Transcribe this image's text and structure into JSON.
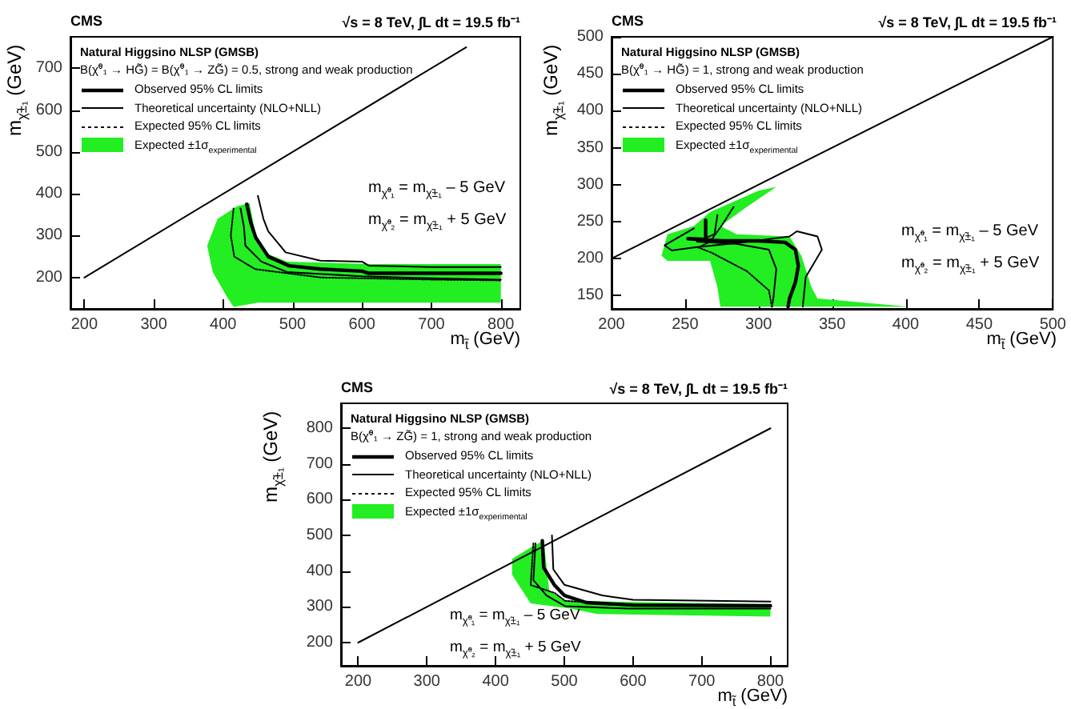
{
  "chart_data": [
    {
      "type": "line",
      "title": "CMS",
      "legend_title": "Natural Higgsino NLSP (GMSB)",
      "xlabel": "m$_{t̃}$ (GeV)",
      "ylabel": "m$_{χ̃±₁}$ (GeV)",
      "annotations": [
        "√s = 8 TeV,  ∫L dt = 19.5 fb⁻¹",
        "B(χ̃⁰₁ → HG̃) = B(χ̃⁰₁ → ZG̃) = 0.5, strong and weak production",
        "m$_{χ̃⁰₁}$ = m$_{χ̃±₁}$ – 5 GeV",
        "m$_{χ̃⁰₂}$ = m$_{χ̃±₁}$ + 5 GeV"
      ],
      "xlim": [
        180,
        828
      ],
      "ylim": [
        125,
        775
      ],
      "xticks": [
        200,
        300,
        400,
        500,
        600,
        700,
        800
      ],
      "yticks": [
        200,
        300,
        400,
        500,
        600,
        700
      ],
      "grid": false,
      "legend": "top left",
      "marker": "none",
      "series": [
        {
          "type": "line",
          "name": "Observed 95% CL limits",
          "color": "#000000",
          "line_style": "solid",
          "x": [
            434,
            440,
            447,
            465,
            495,
            540,
            600,
            610,
            700,
            800
          ],
          "values": [
            375,
            330,
            295,
            250,
            228,
            220,
            215,
            210,
            210,
            210
          ]
        },
        {
          "type": "line",
          "name": "Theoretical uncertainty (NLO+NLL)",
          "color": "#000000",
          "line_style": "solid",
          "x": [
            450,
            458,
            465,
            490,
            540,
            600,
            610,
            700,
            800
          ],
          "values": [
            395,
            340,
            310,
            260,
            240,
            238,
            228,
            225,
            225
          ]
        },
        {
          "type": "line",
          "color": "#000000",
          "line_style": "solid",
          "x": [
            425,
            430,
            432,
            455,
            492,
            600,
            700,
            800
          ],
          "values": [
            365,
            320,
            276,
            238,
            213,
            203,
            198,
            195
          ]
        },
        {
          "type": "line",
          "name": "Expected 95% CL limits",
          "color": "#000000",
          "line_style": "dotted",
          "x": [
            415,
            411,
            416,
            446,
            540,
            700,
            800
          ],
          "values": [
            365,
            300,
            250,
            220,
            200,
            195,
            193
          ]
        },
        {
          "type": "area",
          "name": "Expected ±1σ$_{experimental}$",
          "color": "#22ee22",
          "x": [
            438,
            447,
            462,
            492,
            615,
            800,
            800,
            700,
            540,
            450,
            415,
            405,
            385,
            377,
            392,
            420
          ],
          "values": [
            378,
            300,
            258,
            238,
            232,
            232,
            140,
            140,
            140,
            140,
            130,
            155,
            213,
            276,
            340,
            370
          ]
        },
        {
          "type": "line",
          "color": "#000000",
          "line_style": "solid",
          "x": [
            200,
            750
          ],
          "values": [
            200,
            750
          ]
        }
      ]
    },
    {
      "type": "line",
      "title": "CMS",
      "legend_title": "Natural Higgsino NLSP (GMSB)",
      "xlabel": "m$_{t̃}$ (GeV)",
      "ylabel": "m$_{χ̃±₁}$ (GeV)",
      "annotations": [
        "√s = 8 TeV,  ∫L dt = 19.5 fb⁻¹",
        "B(χ̃⁰₁ → HG̃) = 1, strong and weak production",
        "m$_{χ̃⁰₁}$ = m$_{χ̃±₁}$ – 5 GeV",
        "m$_{χ̃⁰₂}$ = m$_{χ̃±₁}$ + 5 GeV"
      ],
      "xlim": [
        200,
        500
      ],
      "ylim": [
        132,
        500
      ],
      "xticks": [
        200,
        250,
        300,
        350,
        400,
        450,
        500
      ],
      "yticks": [
        150,
        200,
        250,
        300,
        350,
        400,
        450,
        500
      ],
      "grid": false,
      "legend": "top left",
      "marker": "none",
      "series": [
        {
          "type": "line",
          "name": "Observed 95% CL limits",
          "color": "#000000",
          "line_style": "solid",
          "x": [
            264,
            264,
            252,
            275,
            300,
            318,
            325,
            327,
            325,
            321,
            320
          ],
          "values": [
            252,
            226,
            227,
            224,
            224,
            222,
            212,
            190,
            168,
            146,
            135
          ]
        },
        {
          "type": "line",
          "name": "Theoretical uncertainty (NLO+NLL)",
          "color": "#000000",
          "line_style": "solid",
          "x": [
            256,
            236,
            241,
            256,
            290,
            321,
            326,
            340,
            343,
            332,
            330
          ],
          "values": [
            241,
            218,
            211,
            215,
            222,
            230,
            237,
            230,
            212,
            175,
            135
          ]
        },
        {
          "type": "line",
          "color": "#000000",
          "line_style": "solid",
          "x": [
            272,
            270,
            258,
            285,
            307,
            312,
            310,
            309
          ],
          "values": [
            259,
            233,
            223,
            220,
            212,
            186,
            146,
            135
          ]
        },
        {
          "type": "line",
          "name": "Expected 95% CL limits",
          "color": "#000000",
          "line_style": "dotted",
          "x": [
            283,
            275,
            267,
            259,
            268,
            292,
            307,
            309
          ],
          "values": [
            270,
            245,
            223,
            215,
            208,
            183,
            157,
            135
          ]
        },
        {
          "type": "area",
          "name": "Expected ±1σ$_{experimental}$",
          "color": "#22ee22",
          "x": [
            312,
            292,
            274,
            285,
            321,
            329,
            336,
            340,
            402,
            274,
            272,
            267,
            238,
            234,
            238,
            256,
            267,
            300
          ],
          "values": [
            297,
            270,
            244,
            233,
            230,
            204,
            161,
            146,
            135,
            135,
            161,
            197,
            197,
            204,
            233,
            244,
            263,
            292
          ]
        },
        {
          "type": "line",
          "color": "#000000",
          "line_style": "solid",
          "x": [
            200,
            500
          ],
          "values": [
            200,
            500
          ]
        }
      ]
    },
    {
      "type": "line",
      "title": "CMS",
      "legend_title": "Natural Higgsino NLSP (GMSB)",
      "xlabel": "m$_{t̃}$ (GeV)",
      "ylabel": "m$_{χ̃±₁}$ (GeV)",
      "annotations": [
        "√s = 8 TeV,  ∫L dt = 19.5 fb⁻¹",
        "B(χ̃⁰₁ → ZG̃) = 1, strong and weak production",
        "m$_{χ̃⁰₁}$ = m$_{χ̃±₁}$ – 5 GeV",
        "m$_{χ̃⁰₂}$ = m$_{χ̃±₁}$ + 5 GeV"
      ],
      "xlim": [
        175,
        825
      ],
      "ylim": [
        135,
        870
      ],
      "xticks": [
        200,
        300,
        400,
        500,
        600,
        700,
        800
      ],
      "yticks": [
        200,
        300,
        400,
        500,
        600,
        700,
        800
      ],
      "grid": false,
      "legend": "top left",
      "marker": "none",
      "series": [
        {
          "type": "line",
          "name": "Observed 95% CL limits",
          "color": "#000000",
          "line_style": "solid",
          "x": [
            468,
            470,
            486,
            500,
            532,
            600,
            800
          ],
          "values": [
            485,
            410,
            360,
            332,
            312,
            305,
            303
          ]
        },
        {
          "type": "line",
          "name": "Theoretical uncertainty (NLO+NLL)",
          "color": "#000000",
          "line_style": "solid",
          "x": [
            482,
            484,
            500,
            555,
            600,
            800
          ],
          "values": [
            500,
            405,
            362,
            332,
            320,
            315
          ]
        },
        {
          "type": "line",
          "color": "#000000",
          "line_style": "solid",
          "x": [
            458,
            455,
            474,
            501,
            594,
            800
          ],
          "values": [
            478,
            375,
            332,
            302,
            295,
            295
          ]
        },
        {
          "type": "line",
          "name": "Expected 95% CL limits",
          "color": "#000000",
          "line_style": "dotted",
          "x": [
            455,
            451,
            486,
            501,
            600,
            800
          ],
          "values": [
            478,
            361,
            339,
            317,
            305,
            302
          ]
        },
        {
          "type": "area",
          "name": "Expected ±1σ$_{experimental}$",
          "color": "#22ee22",
          "x": [
            470,
            478,
            501,
            800,
            800,
            548,
            509,
            451,
            424,
            424,
            455
          ],
          "values": [
            485,
            346,
            317,
            307,
            273,
            280,
            295,
            310,
            390,
            434,
            471
          ]
        },
        {
          "type": "line",
          "color": "#000000",
          "line_style": "solid",
          "x": [
            200,
            800
          ],
          "values": [
            200,
            800
          ]
        }
      ]
    }
  ]
}
